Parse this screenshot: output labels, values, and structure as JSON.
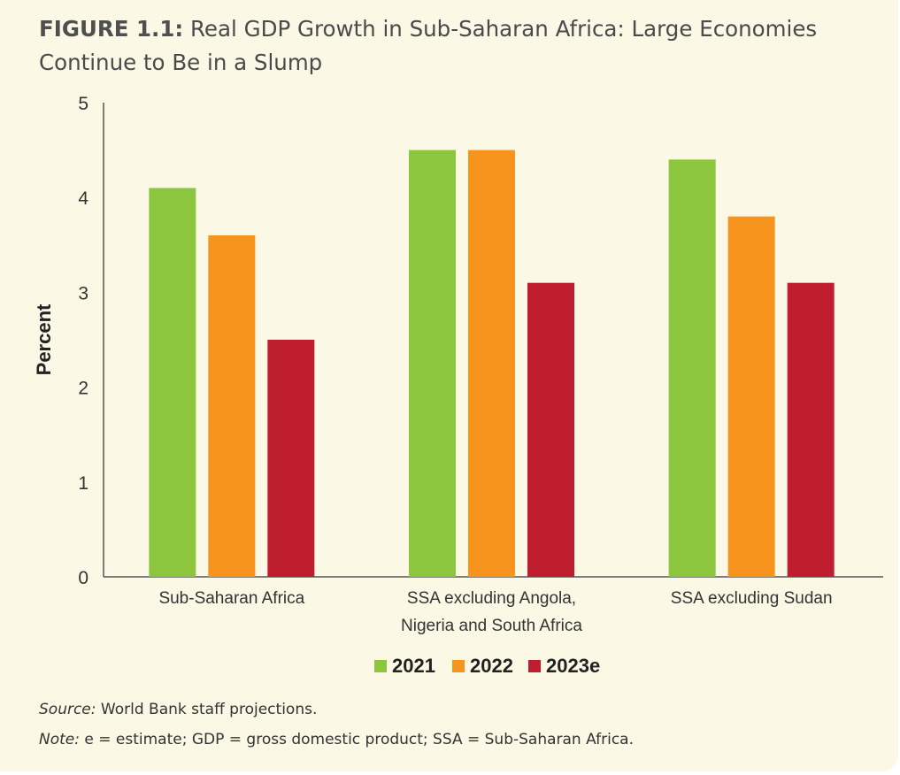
{
  "figure": {
    "label": "FIGURE 1.1:",
    "title_line1": "Real GDP Growth in Sub-Saharan Africa: Large Economies",
    "title_line2": "Continue to Be in a Slump"
  },
  "chart_data": {
    "type": "bar",
    "ylabel": "Percent",
    "ylim": [
      0,
      5
    ],
    "yticks": [
      "0",
      "1",
      "2",
      "3",
      "4",
      "5"
    ],
    "categories": [
      [
        "Sub-Saharan Africa"
      ],
      [
        "SSA excluding Angola,",
        "Nigeria and South Africa"
      ],
      [
        "SSA excluding Sudan"
      ]
    ],
    "series": [
      {
        "name": "2021",
        "color": "#8cc63f",
        "values": [
          4.1,
          4.5,
          4.4
        ]
      },
      {
        "name": "2022",
        "color": "#f7941d",
        "values": [
          3.6,
          4.5,
          3.8
        ]
      },
      {
        "name": "2023e",
        "color": "#be1e2d",
        "values": [
          2.5,
          3.1,
          3.1
        ]
      }
    ],
    "legend_position": "bottom-center",
    "grid": false
  },
  "footer": {
    "source_label": "Source:",
    "source_text": "World Bank staff projections.",
    "note_label": "Note:",
    "note_text": "e = estimate; GDP = gross domestic product; SSA = Sub-Saharan Africa."
  }
}
